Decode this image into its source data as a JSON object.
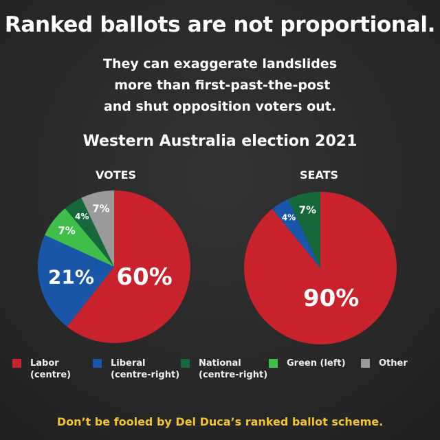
{
  "header": {
    "title": "Ranked ballots are not proportional.",
    "subtitle_lines": [
      "They can exaggerate landslides",
      " more than first-past-the-post",
      "and shut opposition voters out."
    ]
  },
  "chart_data": [
    {
      "type": "pie",
      "title": "VOTES",
      "chart_title": "Western Australia election 2021",
      "slices": [
        {
          "name": "Labor (centre)",
          "value": 60,
          "label": "60%",
          "color": "#c8232c"
        },
        {
          "name": "Liberal (centre-right)",
          "value": 21,
          "label": "21%",
          "color": "#1a56a8"
        },
        {
          "name": "Green (left)",
          "value": 7,
          "label": "7%",
          "color": "#3fbf4a"
        },
        {
          "name": "National (centre-right)",
          "value": 4,
          "label": "4%",
          "color": "#16673a"
        },
        {
          "name": "Other",
          "value": 7,
          "label": "7%",
          "color": "#9a9a9a"
        }
      ]
    },
    {
      "type": "pie",
      "title": "SEATS",
      "slices": [
        {
          "name": "Labor (centre)",
          "value": 90,
          "label": "90%",
          "color": "#c8232c"
        },
        {
          "name": "Liberal (centre-right)",
          "value": 4,
          "label": "4%",
          "color": "#1a56a8"
        },
        {
          "name": "National (centre-right)",
          "value": 7,
          "label": "7%",
          "color": "#16673a"
        }
      ]
    }
  ],
  "legend": {
    "items": [
      {
        "line1": "Labor",
        "line2": "(centre)",
        "color": "#c8232c"
      },
      {
        "line1": "Liberal",
        "line2": "(centre-right)",
        "color": "#1a56a8"
      },
      {
        "line1": "National",
        "line2": "(centre-right)",
        "color": "#16673a"
      },
      {
        "line1": "Green (left)",
        "line2": "",
        "color": "#3fbf4a"
      },
      {
        "line1": "Other",
        "line2": "",
        "color": "#9a9a9a"
      }
    ]
  },
  "footer": {
    "text": "Don’t be fooled by Del Duca’s ranked ballot scheme."
  }
}
